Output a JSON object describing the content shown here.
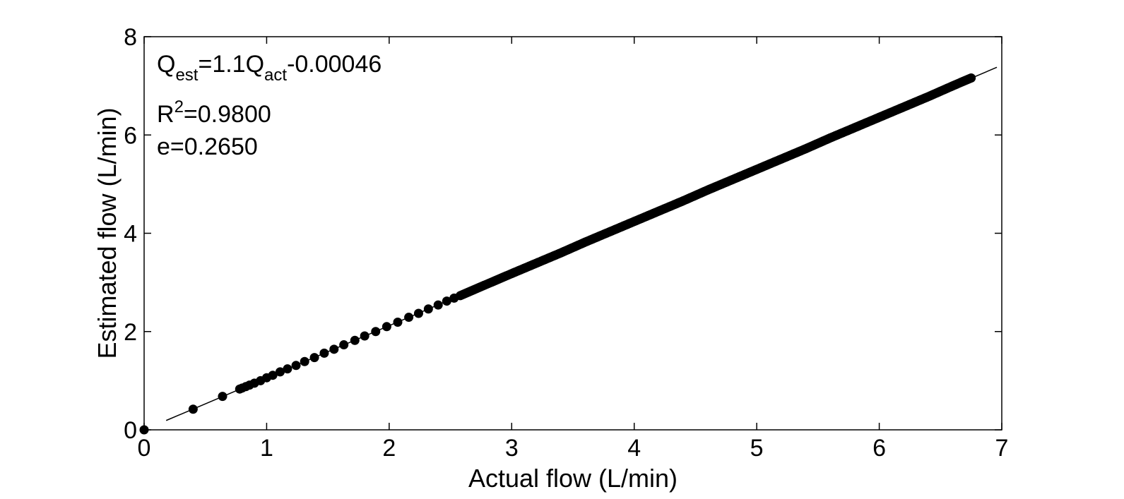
{
  "chart_data": {
    "type": "scatter",
    "xlabel": "Actual flow (L/min)",
    "ylabel": "Estimated flow (L/min)",
    "xlim": [
      0,
      7
    ],
    "ylim": [
      0,
      8
    ],
    "xticks": [
      "0",
      "1",
      "2",
      "3",
      "4",
      "5",
      "6",
      "7"
    ],
    "yticks": [
      "0",
      "2",
      "4",
      "6",
      "8"
    ],
    "grid": false,
    "fit_line": {
      "slope": 1.06,
      "intercept": -0.00046,
      "x_range": [
        0.18,
        6.96
      ]
    },
    "annotations": {
      "equation": {
        "q": "Q",
        "sub_est": "est",
        "mid": "=1.1Q",
        "sub_act": "act",
        "tail": "-0.00046"
      },
      "r2": {
        "r": "R",
        "sup": "2",
        "tail": "=0.9800"
      },
      "e": "e=0.2650"
    },
    "series": [
      {
        "marker": "circle",
        "color": "#000000",
        "points": [
          [
            0.0,
            0.0
          ],
          [
            0.4,
            0.42
          ],
          [
            0.64,
            0.68
          ],
          [
            0.78,
            0.83
          ],
          [
            0.8,
            0.85
          ],
          [
            0.83,
            0.88
          ],
          [
            0.86,
            0.91
          ],
          [
            0.9,
            0.95
          ],
          [
            0.95,
            1.0
          ],
          [
            1.0,
            1.06
          ],
          [
            1.05,
            1.11
          ],
          [
            1.11,
            1.18
          ],
          [
            1.17,
            1.24
          ],
          [
            1.24,
            1.31
          ],
          [
            1.31,
            1.39
          ],
          [
            1.39,
            1.47
          ],
          [
            1.47,
            1.56
          ],
          [
            1.55,
            1.64
          ],
          [
            1.63,
            1.73
          ],
          [
            1.72,
            1.82
          ],
          [
            1.8,
            1.91
          ],
          [
            1.89,
            2.0
          ],
          [
            1.98,
            2.1
          ],
          [
            2.07,
            2.19
          ],
          [
            2.16,
            2.29
          ],
          [
            2.24,
            2.37
          ],
          [
            2.32,
            2.46
          ],
          [
            2.4,
            2.54
          ],
          [
            2.47,
            2.62
          ],
          [
            2.53,
            2.68
          ],
          [
            2.58,
            2.73
          ],
          [
            2.7,
            2.86
          ],
          [
            2.85,
            3.02
          ],
          [
            3.0,
            3.18
          ],
          [
            3.2,
            3.39
          ],
          [
            3.4,
            3.6
          ],
          [
            3.6,
            3.82
          ],
          [
            3.8,
            4.03
          ],
          [
            4.0,
            4.24
          ],
          [
            4.2,
            4.45
          ],
          [
            4.4,
            4.66
          ],
          [
            4.6,
            4.88
          ],
          [
            4.8,
            5.09
          ],
          [
            5.0,
            5.3
          ],
          [
            5.2,
            5.51
          ],
          [
            5.4,
            5.72
          ],
          [
            5.6,
            5.94
          ],
          [
            5.8,
            6.15
          ],
          [
            6.0,
            6.36
          ],
          [
            6.2,
            6.57
          ],
          [
            6.4,
            6.78
          ],
          [
            6.6,
            7.0
          ],
          [
            6.75,
            7.16
          ]
        ]
      }
    ]
  }
}
